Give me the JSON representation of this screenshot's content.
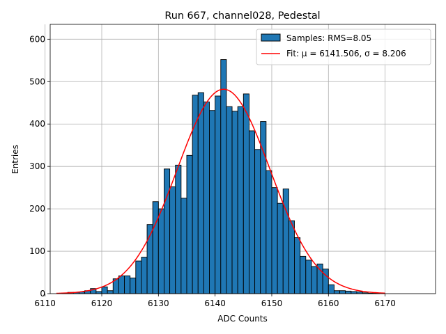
{
  "chart_data": {
    "type": "bar",
    "title": "Run 667, channel028, Pedestal",
    "xlabel": "ADC Counts",
    "ylabel": "Entries",
    "xlim": [
      6110.9,
      6178.9
    ],
    "ylim": [
      0,
      635
    ],
    "xticks": [
      6110,
      6120,
      6130,
      6140,
      6150,
      6160,
      6170
    ],
    "yticks": [
      0,
      100,
      200,
      300,
      400,
      500,
      600
    ],
    "grid": true,
    "legend_position": "top-right",
    "bar_color": "#1f77b4",
    "fit_color": "#ff0000",
    "histogram": {
      "name": "Samples: RMS=8.05",
      "bin_width": 1,
      "bin_starts": [
        6112,
        6113,
        6114,
        6115,
        6116,
        6117,
        6118,
        6119,
        6120,
        6121,
        6122,
        6123,
        6124,
        6125,
        6126,
        6127,
        6128,
        6129,
        6130,
        6131,
        6132,
        6133,
        6134,
        6135,
        6136,
        6137,
        6138,
        6139,
        6140,
        6141,
        6142,
        6143,
        6144,
        6145,
        6146,
        6147,
        6148,
        6149,
        6150,
        6151,
        6152,
        6153,
        6154,
        6155,
        6156,
        6157,
        6158,
        6159,
        6160,
        6161,
        6162,
        6163,
        6164,
        6165,
        6166,
        6167,
        6168,
        6169
      ],
      "counts": [
        0,
        1,
        3,
        3,
        4,
        7,
        12,
        5,
        16,
        7,
        35,
        42,
        42,
        37,
        77,
        86,
        163,
        217,
        200,
        294,
        252,
        303,
        225,
        326,
        468,
        474,
        452,
        432,
        466,
        552,
        441,
        430,
        441,
        471,
        384,
        340,
        406,
        290,
        250,
        213,
        247,
        172,
        132,
        88,
        79,
        64,
        70,
        58,
        21,
        7,
        7,
        6,
        5,
        4,
        2,
        1,
        1,
        0
      ]
    },
    "fit": {
      "name": "Fit: μ = 6141.506, σ = 8.206",
      "mu": 6141.506,
      "sigma": 8.206,
      "amplitude": 482,
      "x_range": [
        6112,
        6170
      ]
    }
  }
}
